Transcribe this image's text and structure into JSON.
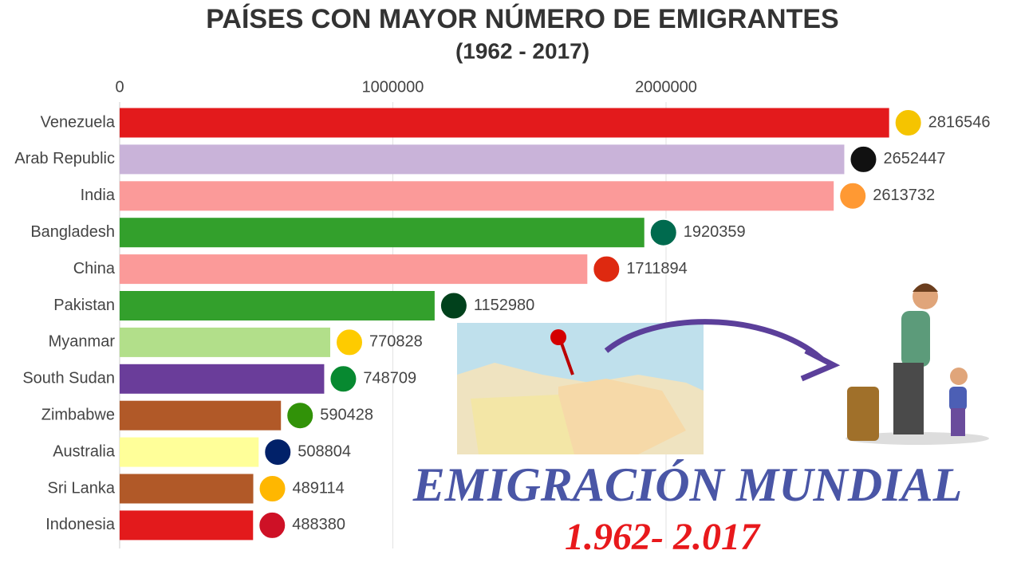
{
  "chart_data": {
    "type": "bar",
    "orientation": "horizontal",
    "title": "PAÍSES CON MAYOR NÚMERO DE EMIGRANTES",
    "subtitle": "(1962 - 2017)",
    "categories": [
      "Venezuela",
      "Arab Republic",
      "India",
      "Bangladesh",
      "China",
      "Pakistan",
      "Myanmar",
      "South Sudan",
      "Zimbabwe",
      "Australia",
      "Sri Lanka",
      "Indonesia"
    ],
    "values": [
      2816546,
      2652447,
      2613732,
      1920359,
      1711894,
      1152980,
      770828,
      748709,
      590428,
      508804,
      489114,
      488380
    ],
    "colors": [
      "#e31a1c",
      "#c9b3d9",
      "#fb9a99",
      "#33a02c",
      "#fb9a99",
      "#33a02c",
      "#b2df8a",
      "#6a3d9a",
      "#b15928",
      "#ffff99",
      "#b15928",
      "#e31a1c"
    ],
    "xlim": [
      0,
      3000000
    ],
    "xticks": [
      0,
      1000000,
      2000000
    ],
    "grid": true,
    "annotations": [
      "EMIGRACIÓN MUNDIAL",
      "1.962- 2.017"
    ]
  }
}
